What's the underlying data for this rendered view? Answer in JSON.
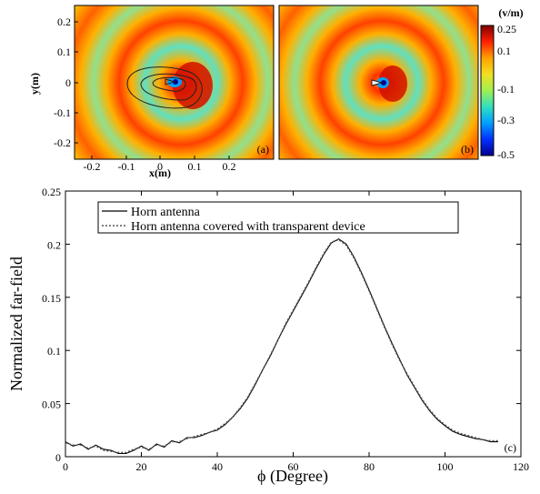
{
  "panels": {
    "a": {
      "label": "(a)"
    },
    "b": {
      "label": "(b)"
    },
    "c": {
      "label": "(c)"
    }
  },
  "colorbar": {
    "unit": "(v/m)",
    "ticks": [
      "0.25",
      "0.1",
      "-0.1",
      "-0.3",
      "-0.5"
    ],
    "colors": [
      "#7f0000",
      "#ff2000",
      "#ffa000",
      "#f0e020",
      "#a0f050",
      "#30e0c0",
      "#00a0ff",
      "#0030ff",
      "#00008f"
    ]
  },
  "field_axes": {
    "xlabel": "x(m)",
    "ylabel": "y(m)",
    "xticks": [
      "-0.2",
      "-0.1",
      "0",
      "0.1",
      "0.2"
    ],
    "yticks": [
      "0.2",
      "0.1",
      "0",
      "-0.1",
      "-0.2"
    ]
  },
  "chart_data": {
    "type": "line",
    "xlabel": "ϕ (Degree)",
    "ylabel": "Normalized far-field",
    "xlim": [
      0,
      120
    ],
    "ylim": [
      0,
      0.25
    ],
    "xticks": [
      "0",
      "20",
      "40",
      "60",
      "80",
      "100",
      "120"
    ],
    "yticks": [
      "0",
      "0.05",
      "0.1",
      "0.15",
      "0.2",
      "0.25"
    ],
    "legend_position": "top-left",
    "series": [
      {
        "name": "Horn antenna",
        "style": "solid",
        "x": [
          0,
          2,
          4,
          6,
          8,
          10,
          12,
          14,
          16,
          18,
          20,
          22,
          24,
          26,
          28,
          30,
          32,
          34,
          36,
          38,
          40,
          42,
          44,
          46,
          48,
          50,
          52,
          54,
          56,
          58,
          60,
          62,
          64,
          66,
          68,
          70,
          72,
          74,
          76,
          78,
          80,
          82,
          84,
          86,
          88,
          90,
          92,
          94,
          96,
          98,
          100,
          102,
          104,
          106,
          108,
          110,
          112,
          114
        ],
        "y": [
          0.014,
          0.01,
          0.012,
          0.007,
          0.011,
          0.007,
          0.006,
          0.003,
          0.003,
          0.006,
          0.01,
          0.006,
          0.012,
          0.009,
          0.015,
          0.013,
          0.018,
          0.018,
          0.02,
          0.023,
          0.025,
          0.03,
          0.037,
          0.045,
          0.055,
          0.068,
          0.082,
          0.095,
          0.11,
          0.124,
          0.137,
          0.15,
          0.163,
          0.177,
          0.19,
          0.201,
          0.205,
          0.2,
          0.188,
          0.173,
          0.157,
          0.14,
          0.123,
          0.107,
          0.092,
          0.077,
          0.065,
          0.053,
          0.043,
          0.035,
          0.029,
          0.024,
          0.021,
          0.019,
          0.017,
          0.016,
          0.014,
          0.014
        ]
      },
      {
        "name": "Horn antenna covered with transparent device",
        "style": "dotted",
        "x": [
          0,
          2,
          4,
          6,
          8,
          10,
          12,
          14,
          16,
          18,
          20,
          22,
          24,
          26,
          28,
          30,
          32,
          34,
          36,
          38,
          40,
          42,
          44,
          46,
          48,
          50,
          52,
          54,
          56,
          58,
          60,
          62,
          64,
          66,
          68,
          70,
          72,
          74,
          76,
          78,
          80,
          82,
          84,
          86,
          88,
          90,
          92,
          94,
          96,
          98,
          100,
          102,
          104,
          106,
          108,
          110,
          112,
          114
        ],
        "y": [
          0.013,
          0.011,
          0.011,
          0.008,
          0.01,
          0.006,
          0.005,
          0.004,
          0.004,
          0.007,
          0.009,
          0.007,
          0.011,
          0.01,
          0.014,
          0.014,
          0.017,
          0.019,
          0.021,
          0.023,
          0.026,
          0.031,
          0.037,
          0.046,
          0.056,
          0.069,
          0.082,
          0.096,
          0.11,
          0.125,
          0.138,
          0.151,
          0.164,
          0.178,
          0.191,
          0.202,
          0.204,
          0.199,
          0.187,
          0.172,
          0.156,
          0.139,
          0.122,
          0.106,
          0.091,
          0.078,
          0.066,
          0.054,
          0.044,
          0.036,
          0.03,
          0.025,
          0.022,
          0.02,
          0.018,
          0.016,
          0.015,
          0.015
        ]
      }
    ]
  }
}
